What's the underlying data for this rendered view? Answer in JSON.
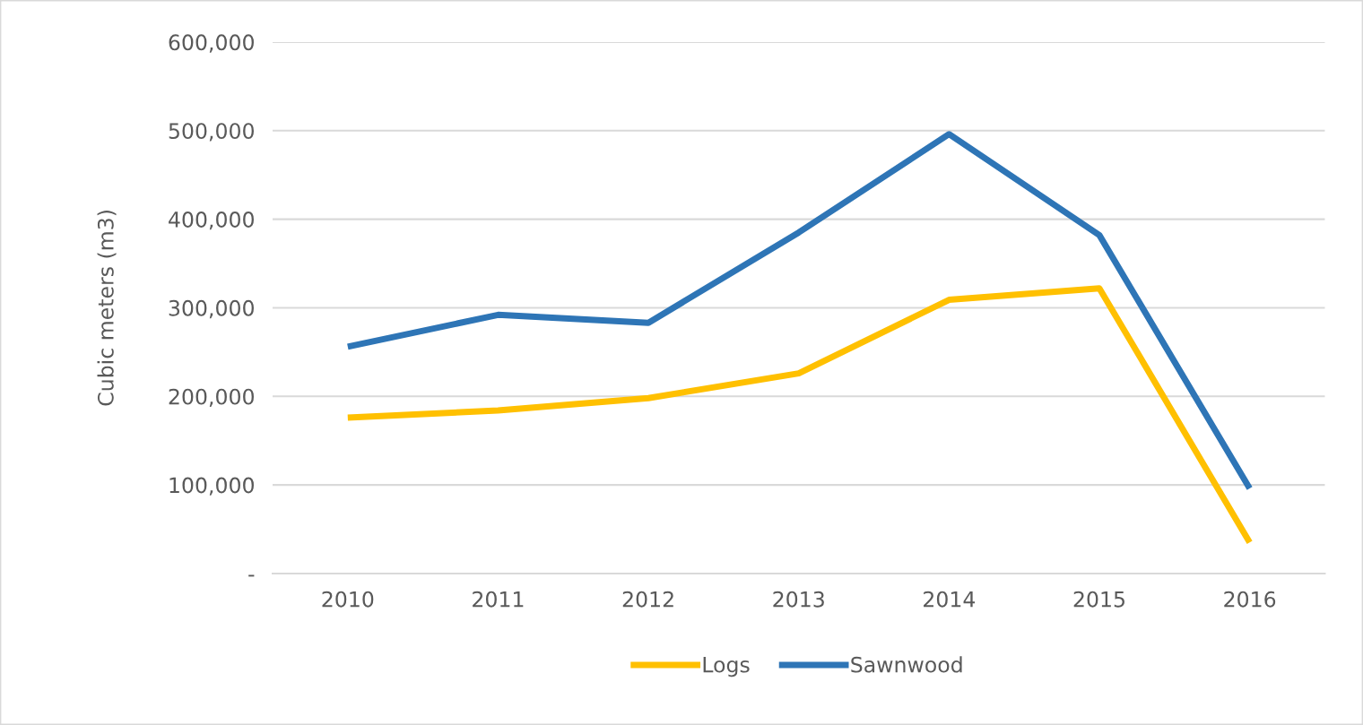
{
  "chart_data": {
    "type": "line",
    "ylabel": "Cubic meters (m3)",
    "categories": [
      "2010",
      "2011",
      "2012",
      "2013",
      "2014",
      "2015",
      "2016"
    ],
    "series": [
      {
        "name": "Logs",
        "color": "#ffc000",
        "values": [
          176000,
          184000,
          198000,
          226000,
          309000,
          322000,
          35000
        ]
      },
      {
        "name": "Sawnwood",
        "color": "#2e75b6",
        "values": [
          256000,
          292000,
          283000,
          385000,
          496000,
          382000,
          96000
        ]
      }
    ],
    "ylim": [
      0,
      600000
    ],
    "yticks": [
      {
        "value": 0,
        "label": "-"
      },
      {
        "value": 100000,
        "label": "100,000"
      },
      {
        "value": 200000,
        "label": "200,000"
      },
      {
        "value": 300000,
        "label": "300,000"
      },
      {
        "value": 400000,
        "label": "400,000"
      },
      {
        "value": 500000,
        "label": "500,000"
      },
      {
        "value": 600000,
        "label": "600,000"
      }
    ],
    "grid": "y",
    "legend": "bottom",
    "marker": "none",
    "line_style": "solid"
  }
}
